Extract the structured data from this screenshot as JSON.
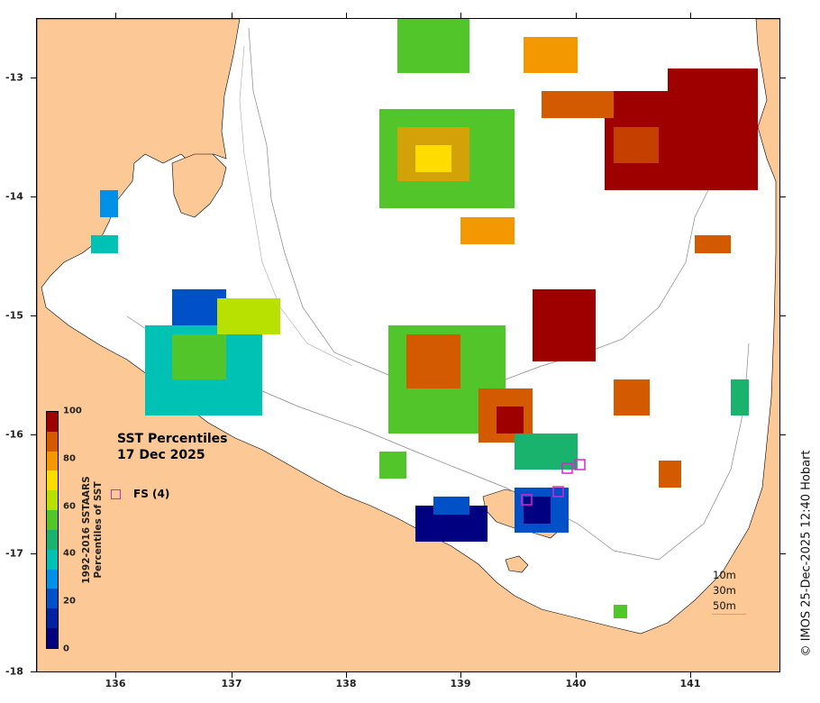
{
  "map": {
    "title_line1": "SST Percentiles",
    "title_line2": "17 Dec 2025",
    "credit": "© IMOS 25-Dec-2025 12:40 Hobart",
    "x_ticks": [
      "136",
      "137",
      "138",
      "139",
      "140",
      "141"
    ],
    "y_ticks": [
      "-13",
      "-14",
      "-15",
      "-16",
      "-17",
      "-18"
    ],
    "land_color": "#fcc996",
    "sea_color": "#ffffff"
  },
  "colorbar": {
    "label_line1": "1992-2016 SSTAARS",
    "label_line2": "Percentiles of SST",
    "ticks": [
      "100",
      "80",
      "60",
      "40",
      "20",
      "0"
    ],
    "colors": [
      "#9e0000",
      "#d45a00",
      "#f39800",
      "#ffdc00",
      "#b8e000",
      "#52c52a",
      "#19b36e",
      "#00c2b4",
      "#0090e8",
      "#0050c8",
      "#0022a0",
      "#000080"
    ]
  },
  "legend": {
    "marker_label": "FS (4)",
    "marker_color": "#e020d0"
  },
  "depth_legend": [
    "10m",
    "30m",
    "50m"
  ]
}
